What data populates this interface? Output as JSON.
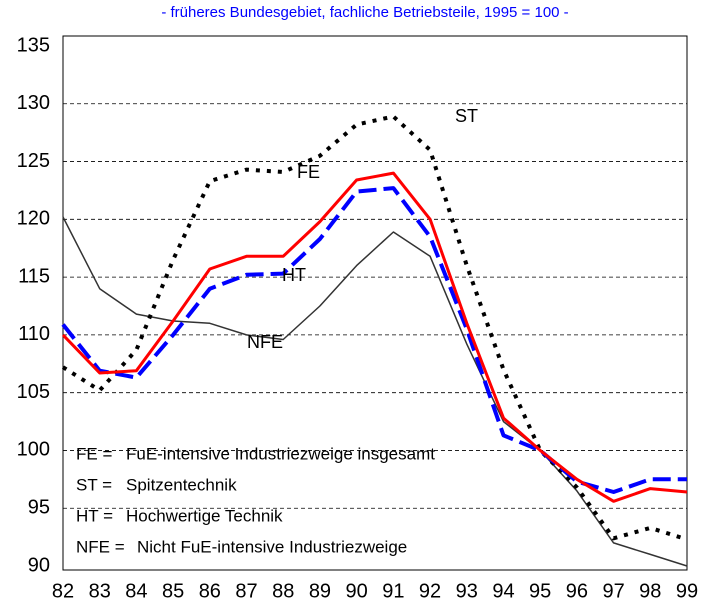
{
  "chart_data": {
    "type": "line",
    "subtitle": "- früheres Bundesgebiet, fachliche Betriebsteile, 1995 = 100 -",
    "categories": [
      "82",
      "83",
      "84",
      "85",
      "86",
      "87",
      "88",
      "89",
      "90",
      "91",
      "92",
      "93",
      "94",
      "95",
      "96",
      "97",
      "98",
      "99"
    ],
    "series": [
      {
        "name": "NFE",
        "color": "#333333",
        "values": [
          120.2,
          114,
          111.8,
          111.2,
          111,
          110,
          109.6,
          112.5,
          116,
          118.9,
          116.8,
          109.2,
          102.5,
          100,
          96.5,
          92,
          91,
          90
        ]
      },
      {
        "name": "ST",
        "color": "#000000",
        "values": [
          107.2,
          105.2,
          108.7,
          116.5,
          123.3,
          124.3,
          124.1,
          125.5,
          128.2,
          128.9,
          126,
          116,
          107,
          100,
          96.8,
          92.4,
          93.3,
          92.3
        ]
      },
      {
        "name": "HT",
        "color": "#0000ff",
        "values": [
          110.9,
          106.9,
          106.3,
          110,
          114,
          115.2,
          115.3,
          118.3,
          122.4,
          122.7,
          118.5,
          110.5,
          101.3,
          100,
          97.3,
          96.4,
          97.5,
          97.5
        ]
      },
      {
        "name": "FE",
        "color": "#ff0000",
        "values": [
          110,
          106.7,
          106.9,
          111.2,
          115.7,
          116.8,
          116.8,
          119.8,
          123.4,
          124,
          120,
          111,
          102.8,
          100,
          97.5,
          95.6,
          96.7,
          96.4
        ]
      }
    ],
    "ylim": [
      90,
      135
    ],
    "yticks": [
      90,
      95,
      100,
      105,
      110,
      115,
      120,
      125,
      130,
      135
    ],
    "grid": true,
    "legend": [
      {
        "key": "FE =",
        "text": "FuE-intensive Industriezweige insgesamt"
      },
      {
        "key": "ST =",
        "text": "Spitzentechnik"
      },
      {
        "key": "HT =",
        "text": "Hochwertige Technik"
      },
      {
        "key": "NFE =",
        "text": "Nicht FuE-intensive Industriezweige"
      }
    ]
  }
}
